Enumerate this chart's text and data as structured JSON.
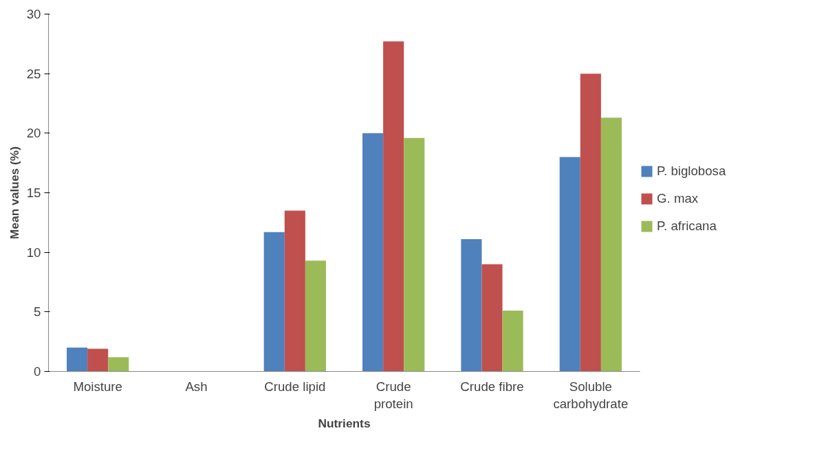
{
  "chart_data": {
    "type": "bar",
    "xlabel": "Nutrients",
    "ylabel": "Mean values (%)",
    "categories": [
      "Moisture",
      "Ash",
      "Crude lipid",
      "Crude protein",
      "Crude fibre",
      "Soluble carbohydrate"
    ],
    "series": [
      {
        "name": "P. biglobosa",
        "color": "#4f81bd",
        "values": [
          2.0,
          null,
          11.7,
          20.0,
          11.1,
          18.0
        ]
      },
      {
        "name": "G. max",
        "color": "#c0504d",
        "values": [
          1.9,
          null,
          13.5,
          27.7,
          9.0,
          25.0
        ]
      },
      {
        "name": "P. africana",
        "color": "#9bbb59",
        "values": [
          1.2,
          null,
          9.3,
          19.6,
          5.1,
          21.3
        ]
      }
    ],
    "ylim": [
      0,
      30
    ],
    "yticks": [
      0,
      5,
      10,
      15,
      20,
      25,
      30
    ],
    "grid": false,
    "legend": "right"
  }
}
